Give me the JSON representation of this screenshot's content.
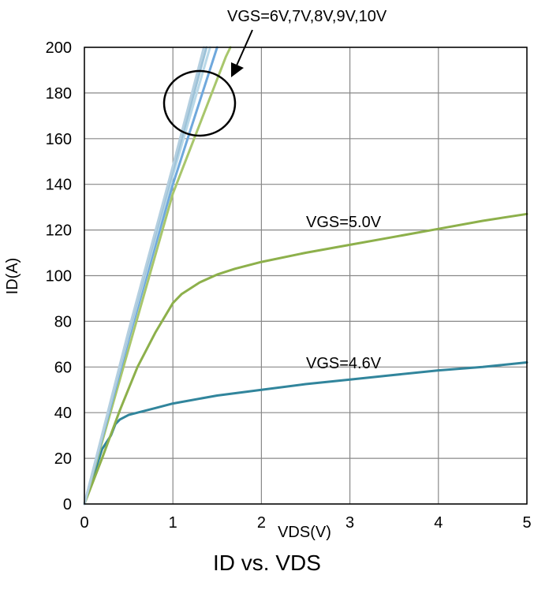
{
  "chart_data": {
    "type": "line",
    "title": "ID vs. VDS",
    "xlabel": "VDS(V)",
    "ylabel": "ID(A)",
    "xlim": [
      0,
      5
    ],
    "ylim": [
      0,
      200
    ],
    "x_ticks": [
      "0",
      "1",
      "2",
      "3",
      "4",
      "5"
    ],
    "y_ticks": [
      "0",
      "20",
      "40",
      "60",
      "80",
      "100",
      "120",
      "140",
      "160",
      "180",
      "200"
    ],
    "grid": true,
    "series": [
      {
        "name": "VGS=4.6V",
        "color": "#31859c",
        "x": [
          0,
          0.2,
          0.3,
          0.35,
          0.4,
          0.5,
          0.6,
          0.8,
          1.0,
          1.5,
          2.0,
          2.5,
          3.0,
          3.5,
          4.0,
          4.5,
          5.0
        ],
        "y": [
          0,
          24,
          30,
          35,
          37,
          39,
          40,
          42,
          44,
          47.5,
          50,
          52.5,
          54.5,
          56.5,
          58.5,
          60,
          62
        ]
      },
      {
        "name": "VGS=5.0V",
        "color": "#8db04b",
        "x": [
          0,
          0.2,
          0.4,
          0.6,
          0.8,
          1.0,
          1.1,
          1.3,
          1.5,
          1.7,
          2.0,
          2.5,
          3.0,
          3.5,
          4.0,
          4.5,
          5.0
        ],
        "y": [
          0,
          20,
          41,
          60,
          75,
          88,
          92,
          97,
          100.5,
          103,
          106,
          110,
          113.5,
          117,
          120.5,
          124,
          127
        ]
      },
      {
        "name": "VGS=6V",
        "color": "#a8c66c",
        "x": [
          0,
          0.5,
          1.0,
          1.3,
          1.6,
          1.65
        ],
        "y": [
          0,
          68,
          136,
          166,
          196,
          200
        ]
      },
      {
        "name": "VGS=7V",
        "color": "#6fa8dc",
        "x": [
          0,
          0.5,
          1.0,
          1.5
        ],
        "y": [
          0,
          72,
          140,
          200
        ]
      },
      {
        "name": "VGS=8V",
        "color": "#b8d8e8",
        "x": [
          0,
          0.5,
          1.0,
          1.42
        ],
        "y": [
          0,
          74,
          144,
          200
        ]
      },
      {
        "name": "VGS=9V",
        "color": "#9cc2d8",
        "x": [
          0,
          0.5,
          1.0,
          1.38
        ],
        "y": [
          0,
          75,
          146,
          200
        ]
      },
      {
        "name": "VGS=10V",
        "color": "#b4cfe0",
        "x": [
          0,
          0.5,
          1.0,
          1.35
        ],
        "y": [
          0,
          76,
          148,
          200
        ]
      }
    ],
    "annotations": {
      "group_label": "VGS=6V,7V,8V,9V,10V",
      "label_50": "VGS=5.0V",
      "label_46": "VGS=4.6V"
    }
  }
}
